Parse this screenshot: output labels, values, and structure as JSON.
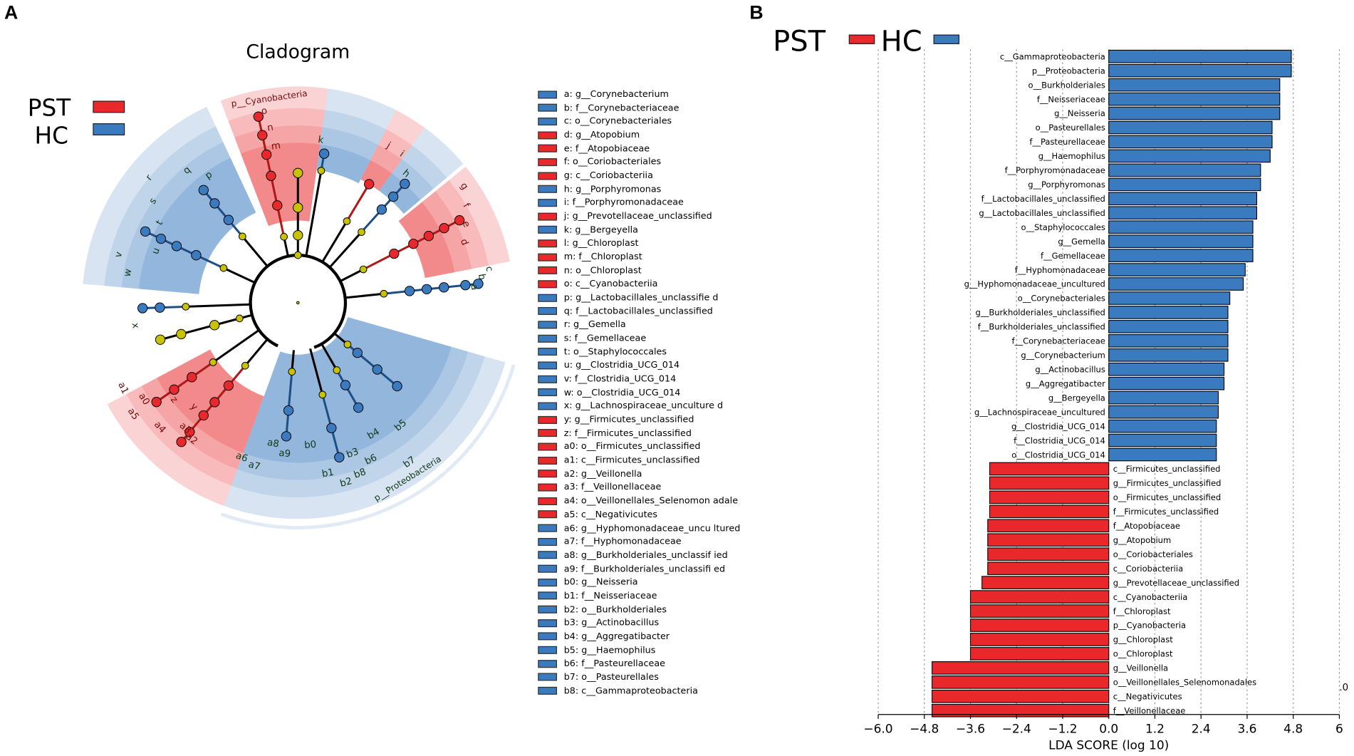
{
  "panel_a_label": "A",
  "panel_b_label": "B",
  "colors": {
    "PST": "#e8282b",
    "HC": "#3a7abf",
    "neutral": "#c8c200",
    "edge": "#000000"
  },
  "cladogram": {
    "title": "Cladogram",
    "legend": [
      {
        "label": "PST",
        "group": "PST"
      },
      {
        "label": "HC",
        "group": "HC"
      }
    ],
    "clade_labels": [
      "p__Cyanobacteria",
      "p__Proteobacteria"
    ],
    "node_letters_pst": [
      "o",
      "n",
      "m",
      "j",
      "g",
      "f",
      "e",
      "d",
      "y",
      "z",
      "a0",
      "a1",
      "a2",
      "a3",
      "a4",
      "a5"
    ],
    "node_letters_hc": [
      "k",
      "i",
      "h",
      "c",
      "b",
      "a",
      "q",
      "p",
      "r",
      "s",
      "t",
      "u",
      "v",
      "w",
      "x",
      "a6",
      "a7",
      "a8",
      "a9",
      "b0",
      "b1",
      "b2",
      "b3",
      "b4",
      "b5",
      "b6",
      "b7",
      "b8"
    ],
    "key": [
      {
        "code": "a",
        "text": "a: g__Corynebacterium",
        "group": "HC"
      },
      {
        "code": "b",
        "text": "b: f__Corynebacteriaceae",
        "group": "HC"
      },
      {
        "code": "c",
        "text": "c: o__Corynebacteriales",
        "group": "HC"
      },
      {
        "code": "d",
        "text": "d: g__Atopobium",
        "group": "PST"
      },
      {
        "code": "e",
        "text": "e: f__Atopobiaceae",
        "group": "PST"
      },
      {
        "code": "f",
        "text": "f: o__Coriobacteriales",
        "group": "PST"
      },
      {
        "code": "g",
        "text": "g: c__Coriobacteriia",
        "group": "PST"
      },
      {
        "code": "h",
        "text": "h: g__Porphyromonas",
        "group": "HC"
      },
      {
        "code": "i",
        "text": "i: f__Porphyromonadaceae",
        "group": "HC"
      },
      {
        "code": "j",
        "text": "j: g__Prevotellaceae_unclassified",
        "group": "PST"
      },
      {
        "code": "k",
        "text": "k: g__Bergeyella",
        "group": "HC"
      },
      {
        "code": "l",
        "text": "l: g__Chloroplast",
        "group": "PST"
      },
      {
        "code": "m",
        "text": "m: f__Chloroplast",
        "group": "PST"
      },
      {
        "code": "n",
        "text": "n: o__Chloroplast",
        "group": "PST"
      },
      {
        "code": "o",
        "text": "o: c__Cyanobacteriia",
        "group": "PST"
      },
      {
        "code": "p",
        "text": "p: g__Lactobacillales_unclassifie d",
        "group": "HC"
      },
      {
        "code": "q",
        "text": "q: f__Lactobacillales_unclassified",
        "group": "HC"
      },
      {
        "code": "r",
        "text": "r: g__Gemella",
        "group": "HC"
      },
      {
        "code": "s",
        "text": "s: f__Gemellaceae",
        "group": "HC"
      },
      {
        "code": "t",
        "text": "t: o__Staphylococcales",
        "group": "HC"
      },
      {
        "code": "u",
        "text": "u: g__Clostridia_UCG_014",
        "group": "HC"
      },
      {
        "code": "v",
        "text": "v: f__Clostridia_UCG_014",
        "group": "HC"
      },
      {
        "code": "w",
        "text": "w: o__Clostridia_UCG_014",
        "group": "HC"
      },
      {
        "code": "x",
        "text": "x: g__Lachnospiraceae_unculture d",
        "group": "HC"
      },
      {
        "code": "y",
        "text": "y: g__Firmicutes_unclassified",
        "group": "PST"
      },
      {
        "code": "z",
        "text": "z: f__Firmicutes_unclassified",
        "group": "PST"
      },
      {
        "code": "a0",
        "text": "a0: o__Firmicutes_unclassified",
        "group": "PST"
      },
      {
        "code": "a1",
        "text": "a1: c__Firmicutes_unclassified",
        "group": "PST"
      },
      {
        "code": "a2",
        "text": "a2: g__Veillonella",
        "group": "PST"
      },
      {
        "code": "a3",
        "text": "a3: f__Veillonellaceae",
        "group": "PST"
      },
      {
        "code": "a4",
        "text": "a4: o__Veillonellales_Selenomon adale",
        "group": "PST"
      },
      {
        "code": "a5",
        "text": "a5: c__Negativicutes",
        "group": "PST"
      },
      {
        "code": "a6",
        "text": "a6: g__Hyphomonadaceae_uncu ltured",
        "group": "HC"
      },
      {
        "code": "a7",
        "text": "a7: f__Hyphomonadaceae",
        "group": "HC"
      },
      {
        "code": "a8",
        "text": "a8: g__Burkholderiales_unclassif ied",
        "group": "HC"
      },
      {
        "code": "a9",
        "text": "a9: f__Burkholderiales_unclassifi ed",
        "group": "HC"
      },
      {
        "code": "b0",
        "text": "b0: g__Neisseria",
        "group": "HC"
      },
      {
        "code": "b1",
        "text": "b1: f__Neisseriaceae",
        "group": "HC"
      },
      {
        "code": "b2",
        "text": "b2: o__Burkholderiales",
        "group": "HC"
      },
      {
        "code": "b3",
        "text": "b3: g__Actinobacillus",
        "group": "HC"
      },
      {
        "code": "b4",
        "text": "b4: g__Aggregatibacter",
        "group": "HC"
      },
      {
        "code": "b5",
        "text": "b5: g__Haemophilus",
        "group": "HC"
      },
      {
        "code": "b6",
        "text": "b6: f__Pasteurellaceae",
        "group": "HC"
      },
      {
        "code": "b7",
        "text": "b7: o__Pasteurellales",
        "group": "HC"
      },
      {
        "code": "b8",
        "text": "b8: c__Gammaproteobacteria",
        "group": "HC"
      }
    ]
  },
  "chart_data": {
    "type": "bar",
    "orientation": "horizontal",
    "title": "",
    "legend": [
      {
        "label": "PST",
        "group": "PST"
      },
      {
        "label": "HC",
        "group": "HC"
      }
    ],
    "xlabel": "LDA SCORE (log 10)",
    "ylabel": "",
    "xlim": [
      -6.0,
      6.0
    ],
    "xticks": [
      -6.0,
      -4.8,
      -3.6,
      -2.4,
      -1.2,
      0.0,
      1.2,
      2.4,
      3.6,
      4.8,
      6
    ],
    "xtick_labels": [
      "−6.0",
      "−4.8",
      "−3.6",
      "−2.4",
      "−1.2",
      "0.0",
      "1.2",
      "2.4",
      "3.6",
      "4.8",
      "6"
    ],
    "stray_label": ".0",
    "grid": "vertical dotted",
    "bars": [
      {
        "label": "c__Gammaproteobacteria",
        "value": 4.75,
        "group": "HC"
      },
      {
        "label": "p__Proteobacteria",
        "value": 4.75,
        "group": "HC"
      },
      {
        "label": "o__Burkholderiales",
        "value": 4.45,
        "group": "HC"
      },
      {
        "label": "f__Neisseriaceae",
        "value": 4.45,
        "group": "HC"
      },
      {
        "label": "g__Neisseria",
        "value": 4.45,
        "group": "HC"
      },
      {
        "label": "o__Pasteurellales",
        "value": 4.25,
        "group": "HC"
      },
      {
        "label": "f__Pasteurellaceae",
        "value": 4.25,
        "group": "HC"
      },
      {
        "label": "g__Haemophilus",
        "value": 4.2,
        "group": "HC"
      },
      {
        "label": "f__Porphyromonadaceae",
        "value": 3.95,
        "group": "HC"
      },
      {
        "label": "g__Porphyromonas",
        "value": 3.95,
        "group": "HC"
      },
      {
        "label": "f__Lactobacillales_unclassified",
        "value": 3.85,
        "group": "HC"
      },
      {
        "label": "g__Lactobacillales_unclassified",
        "value": 3.85,
        "group": "HC"
      },
      {
        "label": "o__Staphylococcales",
        "value": 3.75,
        "group": "HC"
      },
      {
        "label": "g__Gemella",
        "value": 3.75,
        "group": "HC"
      },
      {
        "label": "f__Gemellaceae",
        "value": 3.75,
        "group": "HC"
      },
      {
        "label": "f__Hyphomonadaceae",
        "value": 3.55,
        "group": "HC"
      },
      {
        "label": "g__Hyphomonadaceae_uncultured",
        "value": 3.5,
        "group": "HC"
      },
      {
        "label": "o__Corynebacteriales",
        "value": 3.15,
        "group": "HC"
      },
      {
        "label": "g__Burkholderiales_unclassified",
        "value": 3.1,
        "group": "HC"
      },
      {
        "label": "f__Burkholderiales_unclassified",
        "value": 3.1,
        "group": "HC"
      },
      {
        "label": "f__Corynebacteriaceae",
        "value": 3.1,
        "group": "HC"
      },
      {
        "label": "g__Corynebacterium",
        "value": 3.1,
        "group": "HC"
      },
      {
        "label": "g__Actinobacillus",
        "value": 3.0,
        "group": "HC"
      },
      {
        "label": "g__Aggregatibacter",
        "value": 3.0,
        "group": "HC"
      },
      {
        "label": "g__Bergeyella",
        "value": 2.85,
        "group": "HC"
      },
      {
        "label": "g__Lachnospiraceae_uncultured",
        "value": 2.85,
        "group": "HC"
      },
      {
        "label": "g__Clostridia_UCG_014",
        "value": 2.8,
        "group": "HC"
      },
      {
        "label": "f__Clostridia_UCG_014",
        "value": 2.8,
        "group": "HC"
      },
      {
        "label": "o__Clostridia_UCG_014",
        "value": 2.8,
        "group": "HC"
      },
      {
        "label": "c__Firmicutes_unclassified",
        "value": -3.1,
        "group": "PST"
      },
      {
        "label": "g__Firmicutes_unclassified",
        "value": -3.1,
        "group": "PST"
      },
      {
        "label": "o__Firmicutes_unclassified",
        "value": -3.1,
        "group": "PST"
      },
      {
        "label": "f__Firmicutes_unclassified",
        "value": -3.1,
        "group": "PST"
      },
      {
        "label": "f__Atopobiaceae",
        "value": -3.15,
        "group": "PST"
      },
      {
        "label": "g__Atopobium",
        "value": -3.15,
        "group": "PST"
      },
      {
        "label": "o__Coriobacteriales",
        "value": -3.15,
        "group": "PST"
      },
      {
        "label": "c__Coriobacteriia",
        "value": -3.15,
        "group": "PST"
      },
      {
        "label": "g__Prevotellaceae_unclassified",
        "value": -3.3,
        "group": "PST"
      },
      {
        "label": "c__Cyanobacteriia",
        "value": -3.6,
        "group": "PST"
      },
      {
        "label": "f__Chloroplast",
        "value": -3.6,
        "group": "PST"
      },
      {
        "label": "p__Cyanobacteria",
        "value": -3.6,
        "group": "PST"
      },
      {
        "label": "g__Chloroplast",
        "value": -3.6,
        "group": "PST"
      },
      {
        "label": "o__Chloroplast",
        "value": -3.6,
        "group": "PST"
      },
      {
        "label": "g__Veillonella",
        "value": -4.6,
        "group": "PST"
      },
      {
        "label": "o__Veillonellales_Selenomonadales",
        "value": -4.6,
        "group": "PST"
      },
      {
        "label": "c__Negativicutes",
        "value": -4.6,
        "group": "PST"
      },
      {
        "label": "f__Veillonellaceae",
        "value": -4.6,
        "group": "PST"
      }
    ]
  }
}
